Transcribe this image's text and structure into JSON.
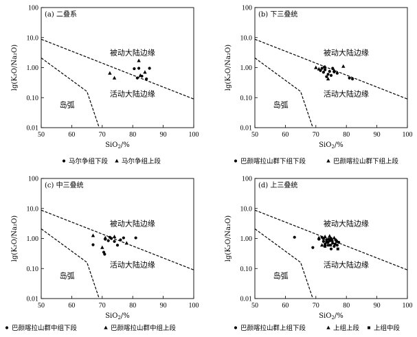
{
  "chart_data": [
    {
      "type": "scatter",
      "panel_label": "(a)",
      "title": "二叠系",
      "xlabel_base": "SiO",
      "xlabel_sub": "2",
      "xlabel_suffix": "/%",
      "ylabel": "lg(K₂O/Na₂O)",
      "xlim": [
        50,
        100
      ],
      "ylim": [
        0.01,
        100
      ],
      "y_scale": "log",
      "x_ticks": [
        "50",
        "60",
        "70",
        "80",
        "90",
        "100"
      ],
      "y_ticks": [
        "0.01",
        "0.10",
        "1.00",
        "10.0",
        "100"
      ],
      "regions": {
        "passive": "被动大陆边缘",
        "active": "活动大陆边缘",
        "arc": "岛弧"
      },
      "legend": [
        "马尔争组下段",
        "马尔争组上段"
      ],
      "series": [
        {
          "name": "马尔争组下段",
          "marker": "circle",
          "points": [
            [
              80.5,
              0.92
            ],
            [
              82,
              0.95
            ],
            [
              83,
              0.52
            ],
            [
              85.5,
              0.95
            ],
            [
              81.5,
              0.45
            ],
            [
              84.5,
              0.42
            ]
          ]
        },
        {
          "name": "马尔争组上段",
          "marker": "triangle",
          "points": [
            [
              72.5,
              0.65
            ],
            [
              74,
              0.45
            ],
            [
              82,
              1.7
            ],
            [
              84,
              0.7
            ],
            [
              82.5,
              0.55
            ]
          ]
        }
      ]
    },
    {
      "type": "scatter",
      "panel_label": "(b)",
      "title": "下三叠统",
      "xlabel_base": "SiO",
      "xlabel_sub": "2",
      "xlabel_suffix": "/%",
      "ylabel": "lg(K₂O/Na₂O)",
      "xlim": [
        50,
        100
      ],
      "ylim": [
        0.01,
        100
      ],
      "y_scale": "log",
      "x_ticks": [
        "50",
        "60",
        "70",
        "80",
        "90",
        "100"
      ],
      "y_ticks": [
        "0.01",
        "0.10",
        "1.00",
        "10.0",
        "100"
      ],
      "regions": {
        "passive": "被动大陆边缘",
        "active": "活动大陆边缘",
        "arc": "岛弧"
      },
      "legend": [
        "巴颜喀拉山群下组下段",
        "巴颜喀拉山群下组上段"
      ],
      "series": [
        {
          "name": "巴颜喀拉山群下组下段",
          "marker": "circle",
          "points": [
            [
              72,
              0.95
            ],
            [
              72.5,
              0.7
            ],
            [
              73,
              0.85
            ],
            [
              74,
              0.6
            ],
            [
              74.5,
              0.75
            ],
            [
              75,
              0.55
            ],
            [
              76,
              0.72
            ],
            [
              77,
              0.65
            ],
            [
              73.5,
              0.5
            ],
            [
              71.5,
              0.8
            ],
            [
              75.5,
              0.95
            ],
            [
              81,
              0.45
            ],
            [
              82,
              0.42
            ],
            [
              72.8,
              1.05
            ]
          ]
        },
        {
          "name": "巴颜喀拉山群下组上段",
          "marker": "triangle",
          "points": [
            [
              70,
              1.0
            ],
            [
              71,
              0.9
            ],
            [
              73,
              1.05
            ],
            [
              74,
              0.42
            ],
            [
              79,
              1.1
            ],
            [
              76,
              0.8
            ]
          ]
        }
      ]
    },
    {
      "type": "scatter",
      "panel_label": "(c)",
      "title": "中三叠统",
      "xlabel_base": "SiO",
      "xlabel_sub": "2",
      "xlabel_suffix": "/%",
      "ylabel": "lg(K₂O/Na₂O)",
      "xlim": [
        50,
        100
      ],
      "ylim": [
        0.01,
        100
      ],
      "y_scale": "log",
      "x_ticks": [
        "50",
        "60",
        "70",
        "80",
        "90",
        "100"
      ],
      "y_ticks": [
        "0.01",
        "0.10",
        "1.00",
        "10.0",
        "100"
      ],
      "regions": {
        "passive": "被动大陆边缘",
        "active": "活动大陆边缘",
        "arc": "岛弧"
      },
      "legend": [
        "巴颜喀拉山群中组下段",
        "巴颜喀拉山群中组上段"
      ],
      "series": [
        {
          "name": "巴颜喀拉山群中组下段",
          "marker": "circle",
          "points": [
            [
              67,
              0.62
            ],
            [
              71,
              0.95
            ],
            [
              72,
              0.85
            ],
            [
              73,
              1.0
            ],
            [
              74,
              0.8
            ],
            [
              76,
              0.9
            ],
            [
              77,
              1.05
            ],
            [
              81,
              1.05
            ],
            [
              70.5,
              0.35
            ],
            [
              70.8,
              0.3
            ],
            [
              72.5,
              1.1
            ],
            [
              75,
              0.6
            ]
          ]
        },
        {
          "name": "巴颜喀拉山群中组上段",
          "marker": "triangle",
          "points": [
            [
              67,
              1.25
            ],
            [
              70,
              0.5
            ],
            [
              71,
              1.05
            ],
            [
              74,
              1.15
            ],
            [
              78,
              0.7
            ]
          ]
        }
      ]
    },
    {
      "type": "scatter",
      "panel_label": "(d)",
      "title": "上三叠统",
      "xlabel_base": "SiO",
      "xlabel_sub": "2",
      "xlabel_suffix": "/%",
      "ylabel": "lg(K₂O/Na₂O)",
      "xlim": [
        50,
        100
      ],
      "ylim": [
        0.01,
        100
      ],
      "y_scale": "log",
      "x_ticks": [
        "50",
        "60",
        "70",
        "80",
        "90",
        "100"
      ],
      "y_ticks": [
        "0.01",
        "0.10",
        "1.00",
        "10.0",
        "100"
      ],
      "regions": {
        "passive": "被动大陆边缘",
        "active": "活动大陆边缘",
        "arc": "岛弧"
      },
      "legend": [
        "巴颜喀拉山群上组下段",
        "上组上段",
        "上组中段"
      ],
      "series": [
        {
          "name": "巴颜喀拉山群上组下段",
          "marker": "circle",
          "points": [
            [
              63,
              1.1
            ],
            [
              69,
              0.5
            ],
            [
              71,
              0.95
            ],
            [
              72,
              1.1
            ],
            [
              72.5,
              0.8
            ],
            [
              73,
              0.65
            ],
            [
              73.5,
              0.9
            ],
            [
              74,
              0.6
            ],
            [
              74.5,
              0.85
            ],
            [
              75,
              1.0
            ],
            [
              75.5,
              0.7
            ],
            [
              76,
              0.55
            ],
            [
              76.5,
              0.9
            ],
            [
              77,
              0.6
            ],
            [
              77.5,
              0.75
            ],
            [
              74,
              0.75
            ],
            [
              75,
              0.45
            ]
          ]
        },
        {
          "name": "上组上段",
          "marker": "triangle",
          "points": [
            [
              71,
              1.05
            ],
            [
              73,
              1.15
            ],
            [
              74.5,
              1.2
            ],
            [
              76,
              1.05
            ],
            [
              72,
              0.6
            ]
          ]
        },
        {
          "name": "上组中段",
          "marker": "square",
          "points": [
            [
              72.5,
              1.0
            ],
            [
              73.5,
              0.75
            ],
            [
              74.2,
              0.95
            ],
            [
              75.2,
              0.85
            ],
            [
              76.3,
              0.65
            ],
            [
              77.2,
              0.45
            ],
            [
              73,
              0.55
            ],
            [
              74.8,
              0.6
            ],
            [
              76.8,
              0.8
            ]
          ]
        }
      ]
    }
  ]
}
